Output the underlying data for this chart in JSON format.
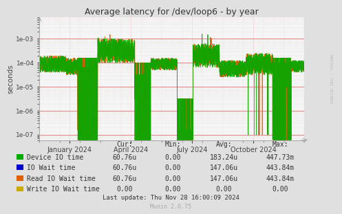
{
  "title": "Average latency for /dev/loop6 - by year",
  "ylabel": "seconds",
  "background_color": "#e0e0e0",
  "plot_bg_color": "#f5f5f5",
  "ylim_min": 6e-08,
  "ylim_max": 0.008,
  "legend_items": [
    {
      "label": "Device IO time",
      "color": "#00aa00"
    },
    {
      "label": "IO Wait time",
      "color": "#0000cc"
    },
    {
      "label": "Read IO Wait time",
      "color": "#e06000"
    },
    {
      "label": "Write IO Wait time",
      "color": "#ccaa00"
    }
  ],
  "table_headers": [
    "Cur:",
    "Min:",
    "Avg:",
    "Max:"
  ],
  "table_rows": [
    [
      "Device IO time",
      "60.76u",
      "0.00",
      "183.24u",
      "447.73m"
    ],
    [
      "IO Wait time",
      "60.76u",
      "0.00",
      "147.06u",
      "443.84m"
    ],
    [
      "Read IO Wait time",
      "60.76u",
      "0.00",
      "147.06u",
      "443.84m"
    ],
    [
      "Write IO Wait time",
      "0.00",
      "0.00",
      "0.00",
      "0.00"
    ]
  ],
  "last_update": "Last update: Thu Nov 28 16:00:09 2024",
  "munin_version": "Munin 2.0.75",
  "rrdtool_label": "RRDTOOL / TOBI OETIKER",
  "x_tick_labels": [
    "January 2024",
    "April 2024",
    "July 2024",
    "October 2024"
  ],
  "ytick_labels": [
    "1e-07",
    "1e-06",
    "1e-05",
    "1e-04",
    "1e-03"
  ],
  "ytick_vals": [
    1e-07,
    1e-06,
    1e-05,
    0.0001,
    0.001
  ]
}
